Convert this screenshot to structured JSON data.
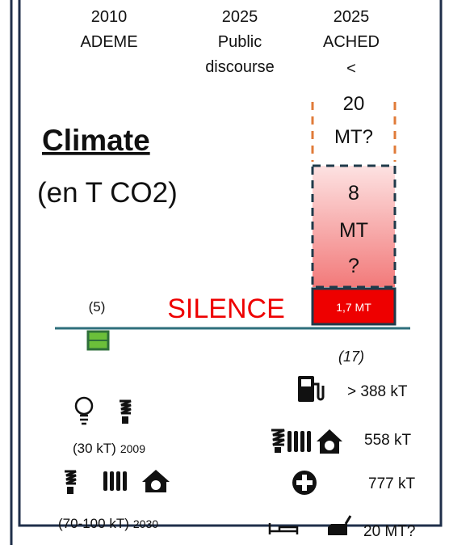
{
  "headers": [
    {
      "lines": [
        "2010",
        "ADEME"
      ]
    },
    {
      "lines": [
        "2025",
        "Public",
        "discourse"
      ]
    },
    {
      "lines": [
        "2025",
        "ACHED",
        "<"
      ]
    }
  ],
  "title": "Climate",
  "subtitle": "(en T CO2)",
  "boxes": {
    "upper": [
      "20",
      "MT?"
    ],
    "middle": [
      "8",
      "MT",
      "?"
    ],
    "base": "1,7 MT"
  },
  "left_count": "(5)",
  "silence": "SILENCE",
  "right_count": "(17)",
  "right_items": [
    "> 388 kT",
    "558 kT",
    "777 kT",
    "20 MT?"
  ],
  "left_items": [
    {
      "value": "(30 kT)",
      "year": "2009"
    },
    {
      "value": "(70-100 kT)",
      "year": "2030"
    }
  ]
}
